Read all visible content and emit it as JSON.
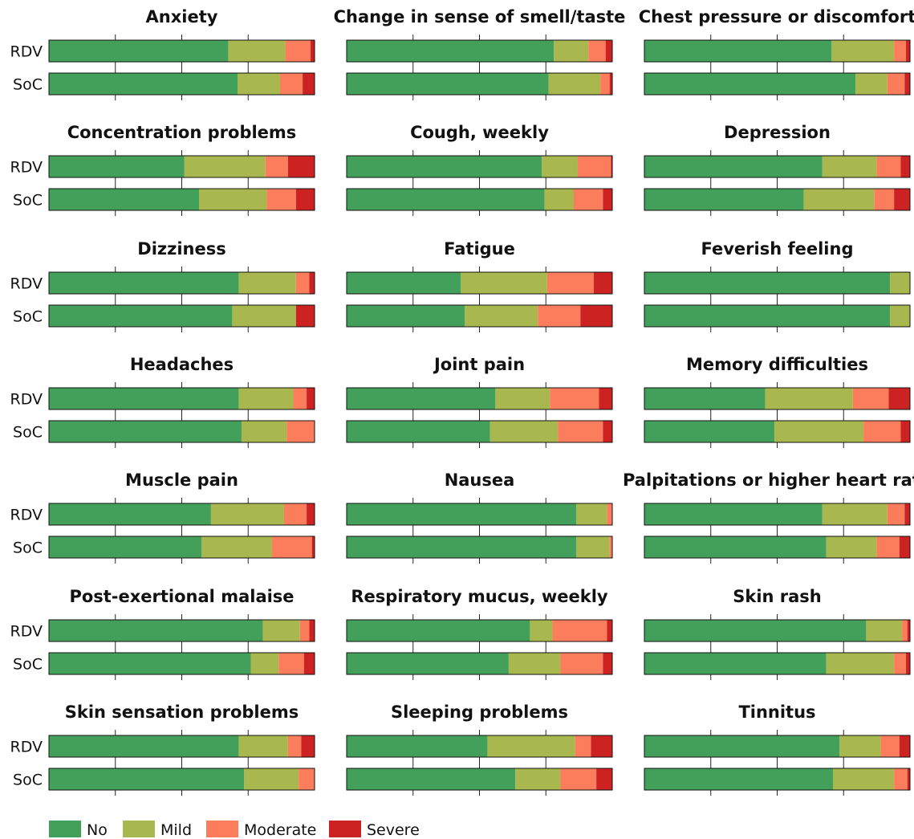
{
  "chart_data": {
    "type": "bar",
    "orientation": "horizontal",
    "stacked": true,
    "normalized": true,
    "groups": [
      "RDV",
      "SoC"
    ],
    "categories": [
      "No",
      "Mild",
      "Moderate",
      "Severe"
    ],
    "colors": {
      "No": "#43a05a",
      "Mild": "#a8b84e",
      "Moderate": "#fb7d5b",
      "Severe": "#cc2222"
    },
    "xlim": [
      0,
      1
    ],
    "grid": false,
    "legend_position": "bottom-left",
    "panels": [
      {
        "title": "Anxiety",
        "RDV": [
          0.675,
          0.215,
          0.095,
          0.015
        ],
        "SoC": [
          0.71,
          0.16,
          0.085,
          0.045
        ]
      },
      {
        "title": "Change in sense of smell/taste",
        "RDV": [
          0.78,
          0.13,
          0.065,
          0.025
        ],
        "SoC": [
          0.76,
          0.195,
          0.035,
          0.01
        ]
      },
      {
        "title": "Chest pressure or discomfort",
        "RDV": [
          0.705,
          0.235,
          0.045,
          0.015
        ],
        "SoC": [
          0.795,
          0.12,
          0.065,
          0.02
        ]
      },
      {
        "title": "Concentration problems",
        "RDV": [
          0.51,
          0.305,
          0.085,
          0.1
        ],
        "SoC": [
          0.565,
          0.255,
          0.11,
          0.07
        ]
      },
      {
        "title": "Cough, weekly",
        "RDV": [
          0.735,
          0.135,
          0.125,
          0.005
        ],
        "SoC": [
          0.745,
          0.11,
          0.11,
          0.035
        ]
      },
      {
        "title": "Depression",
        "RDV": [
          0.67,
          0.205,
          0.09,
          0.035
        ],
        "SoC": [
          0.6,
          0.265,
          0.075,
          0.06
        ]
      },
      {
        "title": "Dizziness",
        "RDV": [
          0.715,
          0.215,
          0.05,
          0.02
        ],
        "SoC": [
          0.69,
          0.24,
          0.0,
          0.07
        ]
      },
      {
        "title": "Fatigue",
        "RDV": [
          0.43,
          0.325,
          0.175,
          0.07
        ],
        "SoC": [
          0.445,
          0.275,
          0.16,
          0.12
        ]
      },
      {
        "title": "Feverish feeling",
        "RDV": [
          0.925,
          0.075,
          0.0,
          0.0
        ],
        "SoC": [
          0.925,
          0.075,
          0.0,
          0.0
        ]
      },
      {
        "title": "Headaches",
        "RDV": [
          0.715,
          0.205,
          0.05,
          0.03
        ],
        "SoC": [
          0.725,
          0.17,
          0.105,
          0.0
        ]
      },
      {
        "title": "Joint pain",
        "RDV": [
          0.56,
          0.205,
          0.185,
          0.05
        ],
        "SoC": [
          0.54,
          0.255,
          0.17,
          0.035
        ]
      },
      {
        "title": "Memory difficulties",
        "RDV": [
          0.455,
          0.33,
          0.135,
          0.08
        ],
        "SoC": [
          0.49,
          0.335,
          0.14,
          0.035
        ]
      },
      {
        "title": "Muscle pain",
        "RDV": [
          0.61,
          0.275,
          0.085,
          0.03
        ],
        "SoC": [
          0.575,
          0.265,
          0.15,
          0.01
        ]
      },
      {
        "title": "Nausea",
        "RDV": [
          0.865,
          0.115,
          0.02,
          0.0
        ],
        "SoC": [
          0.865,
          0.125,
          0.01,
          0.0
        ]
      },
      {
        "title": "Palpitations or higher heart rate",
        "RDV": [
          0.67,
          0.245,
          0.065,
          0.02
        ],
        "SoC": [
          0.685,
          0.19,
          0.085,
          0.04
        ]
      },
      {
        "title": "Post-exertional malaise",
        "RDV": [
          0.805,
          0.14,
          0.035,
          0.02
        ],
        "SoC": [
          0.76,
          0.105,
          0.095,
          0.04
        ]
      },
      {
        "title": "Respiratory mucus, weekly",
        "RDV": [
          0.69,
          0.085,
          0.205,
          0.02
        ],
        "SoC": [
          0.61,
          0.195,
          0.16,
          0.035
        ]
      },
      {
        "title": "Skin rash",
        "RDV": [
          0.835,
          0.135,
          0.02,
          0.01
        ],
        "SoC": [
          0.685,
          0.255,
          0.045,
          0.015
        ]
      },
      {
        "title": "Skin sensation problems",
        "RDV": [
          0.715,
          0.185,
          0.05,
          0.05
        ],
        "SoC": [
          0.735,
          0.205,
          0.06,
          0.0
        ]
      },
      {
        "title": "Sleeping problems",
        "RDV": [
          0.53,
          0.33,
          0.06,
          0.08
        ],
        "SoC": [
          0.635,
          0.17,
          0.135,
          0.06
        ]
      },
      {
        "title": "Tinnitus",
        "RDV": [
          0.735,
          0.155,
          0.07,
          0.04
        ],
        "SoC": [
          0.71,
          0.23,
          0.05,
          0.01
        ]
      }
    ]
  }
}
